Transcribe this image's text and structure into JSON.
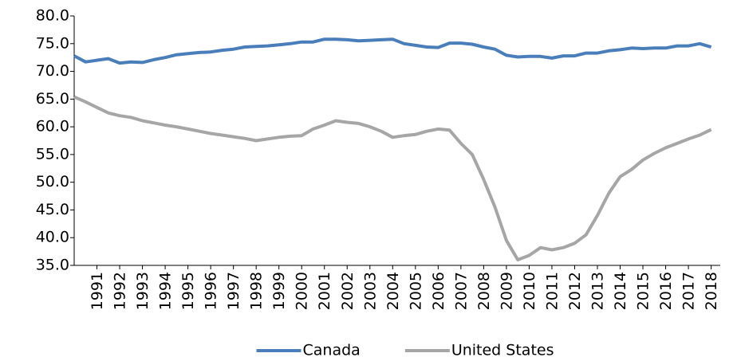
{
  "chart_data": {
    "type": "line",
    "x": [
      1990,
      1990.5,
      1991,
      1991.5,
      1992,
      1992.5,
      1993,
      1993.5,
      1994,
      1994.5,
      1995,
      1995.5,
      1996,
      1996.5,
      1997,
      1997.5,
      1998,
      1998.5,
      1999,
      1999.5,
      2000,
      2000.5,
      2001,
      2001.5,
      2002,
      2002.5,
      2003,
      2003.5,
      2004,
      2004.5,
      2005,
      2005.5,
      2006,
      2006.5,
      2007,
      2007.5,
      2008,
      2008.5,
      2009,
      2009.5,
      2010,
      2010.5,
      2011,
      2011.5,
      2012,
      2012.5,
      2013,
      2013.5,
      2014,
      2014.5,
      2015,
      2015.5,
      2016,
      2016.5,
      2017,
      2017.5,
      2018
    ],
    "series": [
      {
        "name": "Canada",
        "color": "#4a7ebb",
        "values": [
          72.8,
          71.7,
          72.0,
          72.3,
          71.5,
          71.7,
          71.6,
          72.1,
          72.5,
          73.0,
          73.2,
          73.4,
          73.5,
          73.8,
          74.0,
          74.4,
          74.5,
          74.6,
          74.8,
          75.0,
          75.3,
          75.3,
          75.8,
          75.8,
          75.7,
          75.5,
          75.6,
          75.7,
          75.8,
          75.0,
          74.7,
          74.4,
          74.3,
          75.1,
          75.1,
          74.9,
          74.4,
          74.0,
          72.9,
          72.6,
          72.7,
          72.7,
          72.4,
          72.8,
          72.8,
          73.3,
          73.3,
          73.7,
          73.9,
          74.2,
          74.1,
          74.2,
          74.2,
          74.6,
          74.6,
          75.0,
          74.4
        ]
      },
      {
        "name": "United States",
        "color": "#a6a6a6",
        "values": [
          65.4,
          64.5,
          63.5,
          62.5,
          62.0,
          61.7,
          61.1,
          60.7,
          60.3,
          60.0,
          59.6,
          59.2,
          58.8,
          58.5,
          58.2,
          57.9,
          57.5,
          57.8,
          58.1,
          58.3,
          58.4,
          59.6,
          60.3,
          61.1,
          60.8,
          60.6,
          60.0,
          59.2,
          58.1,
          58.4,
          58.6,
          59.2,
          59.6,
          59.4,
          57.0,
          55.0,
          50.5,
          45.5,
          39.5,
          36.0,
          36.8,
          38.2,
          37.8,
          38.2,
          39.0,
          40.5,
          44.0,
          48.0,
          51.0,
          52.3,
          54.0,
          55.2,
          56.2,
          57.0,
          57.8,
          58.5,
          59.5
        ]
      }
    ],
    "xlim": [
      1990,
      2018.4
    ],
    "xticks": [
      1991,
      1992,
      1993,
      1994,
      1995,
      1996,
      1997,
      1998,
      1999,
      2000,
      2001,
      2002,
      2003,
      2004,
      2005,
      2006,
      2007,
      2008,
      2009,
      2010,
      2011,
      2012,
      2013,
      2014,
      2015,
      2016,
      2017,
      2018
    ],
    "ylim": [
      35,
      80
    ],
    "yticks": [
      {
        "value": 35,
        "label": "35.0"
      },
      {
        "value": 40,
        "label": "40.0"
      },
      {
        "value": 45,
        "label": "45.0"
      },
      {
        "value": 50,
        "label": "50.0"
      },
      {
        "value": 55,
        "label": "55.0"
      },
      {
        "value": 60,
        "label": "60.0"
      },
      {
        "value": 65,
        "label": "65.0"
      },
      {
        "value": 70,
        "label": "70.0"
      },
      {
        "value": 75,
        "label": "75.0"
      },
      {
        "value": 80,
        "label": "80.0"
      }
    ],
    "legend": "bottom"
  }
}
